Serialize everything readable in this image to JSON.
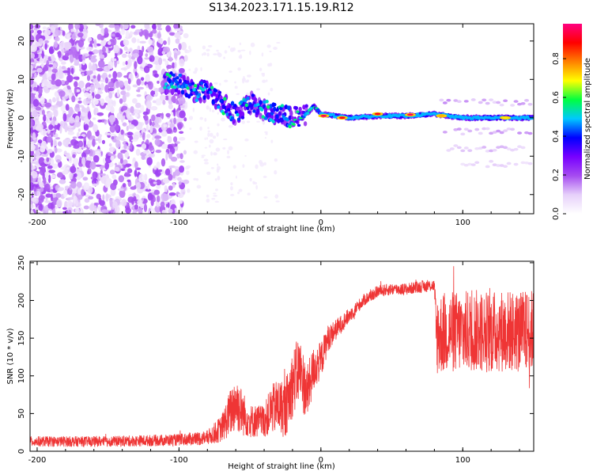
{
  "title": "S134.2023.171.15.19.R12",
  "chart_data": [
    {
      "type": "heatmap",
      "xlabel": "Height of straight line (km)",
      "ylabel": "Frequency (Hz)",
      "xlim": [
        -205,
        150
      ],
      "ylim": [
        -25,
        24.5
      ],
      "x_ticks": [
        -200,
        -100,
        0,
        100
      ],
      "y_ticks": [
        -20,
        -10,
        0,
        10,
        20
      ],
      "colorbar": {
        "label": "Normalized spectral amplitude",
        "range": [
          0.0,
          0.98
        ],
        "ticks": [
          0.0,
          0.2,
          0.4,
          0.6,
          0.8
        ],
        "colormap": [
          "#ffffff",
          "#e6d0fa",
          "#a64cf0",
          "#7700ff",
          "#0000ff",
          "#00c8ff",
          "#00ff40",
          "#ffff00",
          "#ff8000",
          "#ff0000",
          "#ff0080"
        ]
      },
      "ridge_centerline": [
        {
          "x": -100,
          "y": 9
        },
        {
          "x": -90,
          "y": 7
        },
        {
          "x": -80,
          "y": 7
        },
        {
          "x": -70,
          "y": 4
        },
        {
          "x": -60,
          "y": 1
        },
        {
          "x": -50,
          "y": 4
        },
        {
          "x": -40,
          "y": 2
        },
        {
          "x": -30,
          "y": 1
        },
        {
          "x": -20,
          "y": 0
        },
        {
          "x": -10,
          "y": 1
        },
        {
          "x": -5,
          "y": 3
        },
        {
          "x": 0,
          "y": 1
        },
        {
          "x": 20,
          "y": 0
        },
        {
          "x": 40,
          "y": 0.5
        },
        {
          "x": 60,
          "y": 0.5
        },
        {
          "x": 80,
          "y": 1
        },
        {
          "x": 100,
          "y": 0
        },
        {
          "x": 150,
          "y": 0
        }
      ],
      "ridge_peaks": [
        {
          "x": 2,
          "y": 0.5,
          "amplitude": 0.95
        },
        {
          "x": 15,
          "y": 0,
          "amplitude": 0.9
        },
        {
          "x": 40,
          "y": 1,
          "amplitude": 0.9
        },
        {
          "x": 63,
          "y": 0.8,
          "amplitude": 0.95
        },
        {
          "x": 85,
          "y": 0.5,
          "amplitude": 0.75
        },
        {
          "x": 130,
          "y": 0,
          "amplitude": 0.7
        }
      ],
      "sidebands": [
        {
          "x_start": 85,
          "x_end": 150,
          "y": 4,
          "amplitude": 0.15
        },
        {
          "x_start": 85,
          "x_end": 150,
          "y": -3.5,
          "amplitude": 0.15
        },
        {
          "x_start": 90,
          "x_end": 150,
          "y": -8,
          "amplitude": 0.12
        },
        {
          "x_start": 100,
          "x_end": 150,
          "y": -12,
          "amplitude": 0.1
        }
      ]
    },
    {
      "type": "line",
      "xlabel": "Height of straight line (km)",
      "ylabel": "SNR (10 * v/v)",
      "xlim": [
        -205,
        150
      ],
      "ylim": [
        0,
        252
      ],
      "x_ticks": [
        -200,
        -100,
        0,
        100
      ],
      "y_ticks": [
        0,
        50,
        100,
        150,
        200,
        250
      ],
      "color": "#ef3535",
      "series": [
        {
          "x": [
            -205,
            -150,
            -100,
            -80,
            -70,
            -60,
            -55,
            -50,
            -40,
            -35,
            -30,
            -25,
            -20,
            -15,
            -10,
            -5,
            0,
            5,
            10,
            20,
            30,
            40,
            50,
            60,
            70,
            80,
            81,
            90,
            100,
            110,
            120,
            130,
            140,
            150
          ],
          "y": [
            13,
            13,
            15,
            18,
            30,
            65,
            50,
            40,
            40,
            55,
            60,
            55,
            90,
            110,
            75,
            110,
            120,
            150,
            160,
            180,
            200,
            212,
            215,
            215,
            218,
            220,
            155,
            158,
            158,
            160,
            158,
            160,
            158,
            160
          ],
          "noise": [
            7,
            7,
            8,
            10,
            18,
            40,
            30,
            22,
            22,
            32,
            38,
            38,
            45,
            45,
            38,
            30,
            25,
            18,
            14,
            10,
            8,
            8,
            8,
            8,
            8,
            8,
            55,
            55,
            55,
            55,
            55,
            55,
            55,
            55
          ]
        }
      ]
    }
  ]
}
